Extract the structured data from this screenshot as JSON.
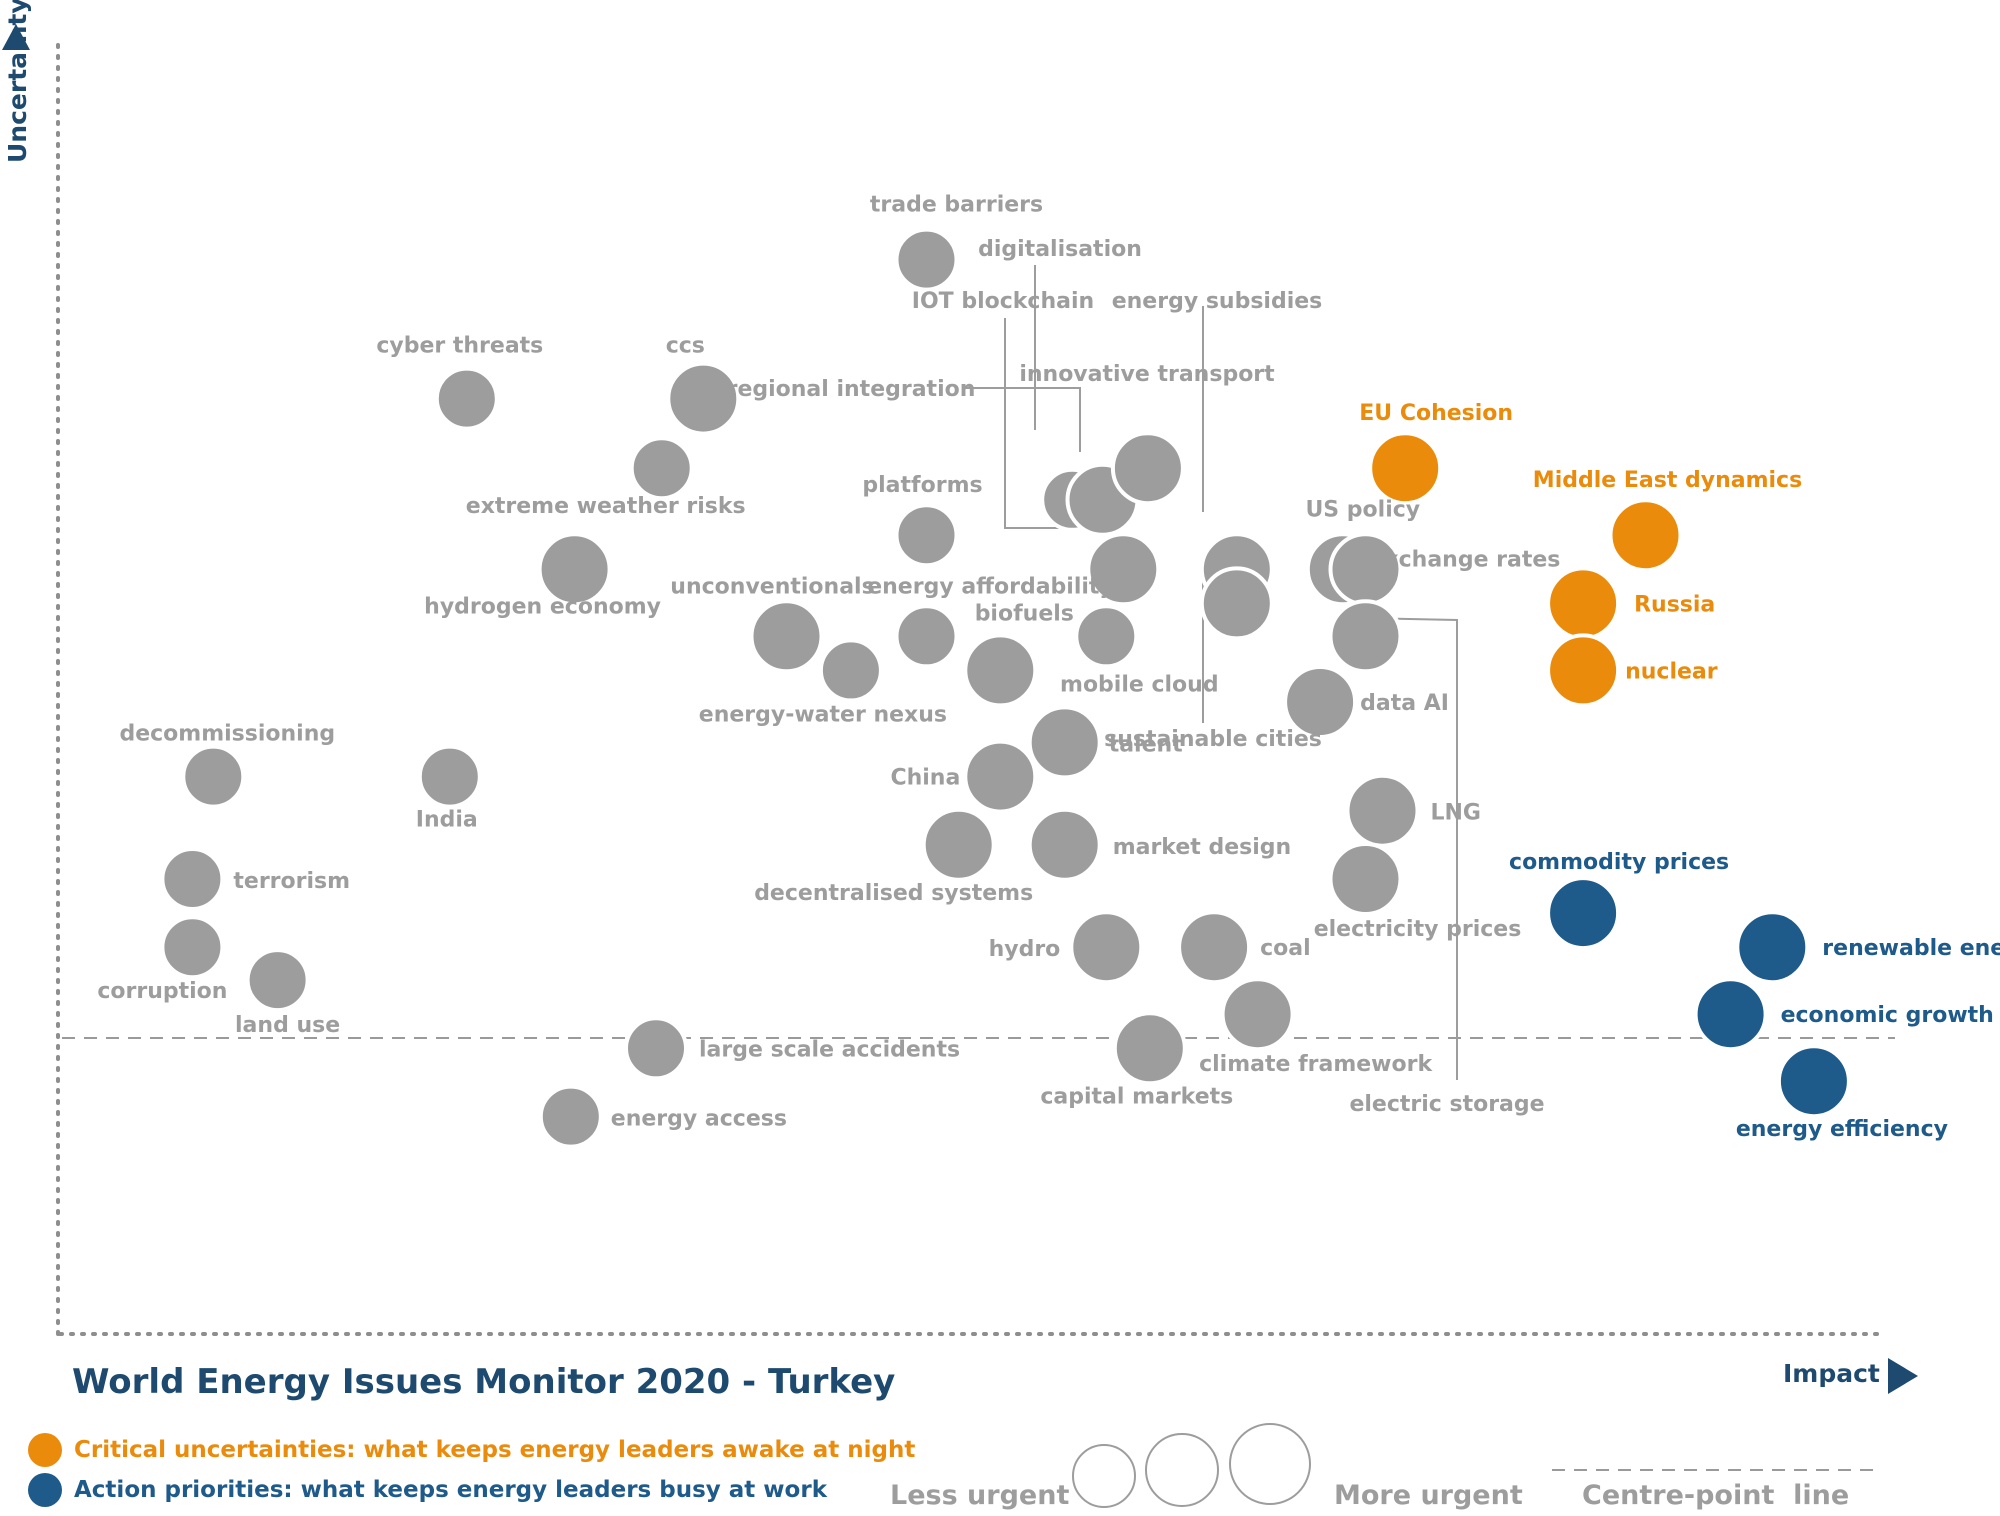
{
  "chart_data": {
    "type": "scatter",
    "title": "World Energy Issues Monitor 2020 - Turkey",
    "xlabel": "Impact",
    "ylabel": "Uncertainty",
    "xlim": [
      0,
      1
    ],
    "ylim": [
      0,
      1
    ],
    "centre_point": {
      "x": 1,
      "y": 0.23
    },
    "points": [
      {
        "label": "trade barriers",
        "x": 0.458,
        "y": 0.85,
        "urgency": "medium",
        "category": "neutral"
      },
      {
        "label": "cyber threats",
        "x": 0.215,
        "y": 0.74,
        "urgency": "medium",
        "category": "neutral"
      },
      {
        "label": "ccs",
        "x": 0.34,
        "y": 0.74,
        "urgency": "large",
        "category": "neutral"
      },
      {
        "label": "extreme weather risks",
        "x": 0.318,
        "y": 0.685,
        "urgency": "medium",
        "category": "neutral"
      },
      {
        "label": "hydrogen economy",
        "x": 0.272,
        "y": 0.605,
        "urgency": "large",
        "category": "neutral"
      },
      {
        "label": "digitalisation",
        "x": 0.535,
        "y": 0.66,
        "urgency": "medium",
        "category": "neutral"
      },
      {
        "label": "IOT blockchain",
        "x": 0.551,
        "y": 0.66,
        "urgency": "large",
        "category": "neutral"
      },
      {
        "label": "innovative transport",
        "x": 0.575,
        "y": 0.685,
        "urgency": "large",
        "category": "neutral"
      },
      {
        "label": "regional integration",
        "x": 0.562,
        "y": 0.605,
        "urgency": "large",
        "category": "neutral"
      },
      {
        "label": "energy subsidies",
        "x": 0.622,
        "y": 0.605,
        "urgency": "large",
        "category": "neutral"
      },
      {
        "label": "sustainable cities",
        "x": 0.622,
        "y": 0.578,
        "urgency": "large",
        "category": "neutral"
      },
      {
        "label": "platforms",
        "x": 0.458,
        "y": 0.632,
        "urgency": "medium",
        "category": "neutral"
      },
      {
        "label": "unconventionals",
        "x": 0.384,
        "y": 0.552,
        "urgency": "large",
        "category": "neutral"
      },
      {
        "label": "energy affordability",
        "x": 0.458,
        "y": 0.552,
        "urgency": "medium",
        "category": "neutral"
      },
      {
        "label": "energy-water nexus",
        "x": 0.418,
        "y": 0.525,
        "urgency": "medium",
        "category": "neutral"
      },
      {
        "label": "biofuels",
        "x": 0.497,
        "y": 0.525,
        "urgency": "large",
        "category": "neutral"
      },
      {
        "label": "mobile cloud",
        "x": 0.553,
        "y": 0.552,
        "urgency": "medium",
        "category": "neutral"
      },
      {
        "label": "US policy",
        "x": 0.678,
        "y": 0.605,
        "urgency": "large",
        "category": "neutral"
      },
      {
        "label": "exchange rates",
        "x": 0.69,
        "y": 0.605,
        "urgency": "large",
        "category": "neutral"
      },
      {
        "label": "electric storage",
        "x": 0.69,
        "y": 0.552,
        "urgency": "large",
        "category": "neutral"
      },
      {
        "label": "data AI",
        "x": 0.666,
        "y": 0.5,
        "urgency": "large",
        "category": "neutral"
      },
      {
        "label": "talent",
        "x": 0.531,
        "y": 0.468,
        "urgency": "large",
        "category": "neutral"
      },
      {
        "label": "China",
        "x": 0.497,
        "y": 0.441,
        "urgency": "large",
        "category": "neutral"
      },
      {
        "label": "decommissioning",
        "x": 0.081,
        "y": 0.441,
        "urgency": "medium",
        "category": "neutral"
      },
      {
        "label": "India",
        "x": 0.206,
        "y": 0.441,
        "urgency": "medium",
        "category": "neutral"
      },
      {
        "label": "LNG",
        "x": 0.699,
        "y": 0.414,
        "urgency": "large",
        "category": "neutral"
      },
      {
        "label": "decentralised systems",
        "x": 0.475,
        "y": 0.387,
        "urgency": "large",
        "category": "neutral"
      },
      {
        "label": "market design",
        "x": 0.531,
        "y": 0.387,
        "urgency": "large",
        "category": "neutral"
      },
      {
        "label": "electricity prices",
        "x": 0.69,
        "y": 0.36,
        "urgency": "large",
        "category": "neutral"
      },
      {
        "label": "terrorism",
        "x": 0.07,
        "y": 0.36,
        "urgency": "medium",
        "category": "neutral"
      },
      {
        "label": "corruption",
        "x": 0.07,
        "y": 0.306,
        "urgency": "medium",
        "category": "neutral"
      },
      {
        "label": "land use",
        "x": 0.115,
        "y": 0.28,
        "urgency": "medium",
        "category": "neutral"
      },
      {
        "label": "hydro",
        "x": 0.553,
        "y": 0.306,
        "urgency": "large",
        "category": "neutral"
      },
      {
        "label": "coal",
        "x": 0.61,
        "y": 0.306,
        "urgency": "large",
        "category": "neutral"
      },
      {
        "label": "climate framework",
        "x": 0.633,
        "y": 0.253,
        "urgency": "large",
        "category": "neutral"
      },
      {
        "label": "capital markets",
        "x": 0.576,
        "y": 0.226,
        "urgency": "large",
        "category": "neutral"
      },
      {
        "label": "large scale accidents",
        "x": 0.315,
        "y": 0.226,
        "urgency": "medium",
        "category": "neutral"
      },
      {
        "label": "energy access",
        "x": 0.27,
        "y": 0.172,
        "urgency": "medium",
        "category": "neutral"
      },
      {
        "label": "EU Cohesion",
        "x": 0.711,
        "y": 0.685,
        "urgency": "large",
        "category": "critical uncertainty"
      },
      {
        "label": "Middle East dynamics",
        "x": 0.838,
        "y": 0.632,
        "urgency": "large",
        "category": "critical uncertainty"
      },
      {
        "label": "Russia",
        "x": 0.805,
        "y": 0.578,
        "urgency": "large",
        "category": "critical uncertainty"
      },
      {
        "label": "nuclear",
        "x": 0.805,
        "y": 0.525,
        "urgency": "large",
        "category": "critical uncertainty"
      },
      {
        "label": "commodity prices",
        "x": 0.805,
        "y": 0.333,
        "urgency": "large",
        "category": "action priority"
      },
      {
        "label": "renewable energies",
        "x": 0.905,
        "y": 0.306,
        "urgency": "large",
        "category": "action priority"
      },
      {
        "label": "economic growth",
        "x": 0.883,
        "y": 0.253,
        "urgency": "large",
        "category": "action priority"
      },
      {
        "label": "energy efficiency",
        "x": 0.927,
        "y": 0.2,
        "urgency": "large",
        "category": "action priority"
      }
    ],
    "legend": [
      {
        "label": "Critical uncertainties: what keeps energy leaders awake at night",
        "color": "#ea8b0c"
      },
      {
        "label": "Action priorities: what keeps energy leaders busy at work",
        "color": "#1e5a8a"
      }
    ],
    "size_legend": {
      "less": "Less urgent",
      "more": "More urgent"
    },
    "line_legend": "Centre-point  line"
  },
  "colors": {
    "neutral": "#9d9d9d",
    "orange": "#ea8b0c",
    "blue": "#1e5a8a",
    "axis_dark": "#1d4a6e"
  }
}
